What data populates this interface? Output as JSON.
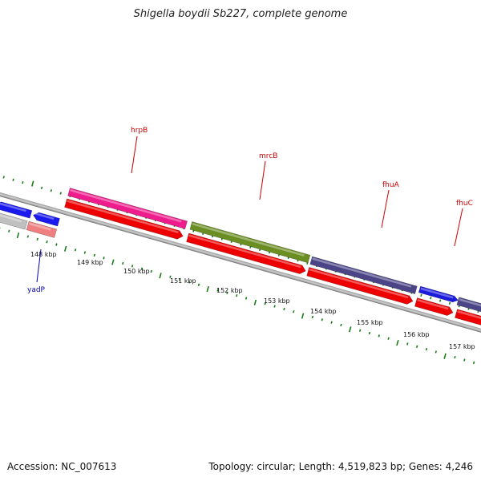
{
  "title": "Shigella boydii Sb227, complete genome",
  "accession": "Accession: NC_007613",
  "summary": "Topology: circular; Length: 4,519,823 bp; Genes: 4,246",
  "colors": {
    "backbone": "#8a8a8a",
    "tick": "#1a7a1a",
    "label_forward": "#cc0000",
    "label_reverse": "#0000aa",
    "cds_red": "#ee0000",
    "hrpB": "#ee1c8c",
    "mrcB": "#6b8e23",
    "fhuA": "#4b4587",
    "fhuC": "#1a1add",
    "yadP_blue": "#1a1aee",
    "grey_gene": "#c0c0c0",
    "pink_gene": "#f08080"
  },
  "scale": {
    "unit": "kbp",
    "labels": [
      "148 kbp",
      "149 kbp",
      "150 kbp",
      "151 kbp",
      "152 kbp",
      "153 kbp",
      "154 kbp",
      "155 kbp",
      "156 kbp",
      "157 kbp"
    ]
  },
  "genes": [
    {
      "name": "hrpB",
      "label": "hrpB",
      "strand": "forward",
      "color_key": "hrpB"
    },
    {
      "name": "mrcB",
      "label": "mrcB",
      "strand": "forward",
      "color_key": "mrcB"
    },
    {
      "name": "fhuA",
      "label": "fhuA",
      "strand": "forward",
      "color_key": "fhuA"
    },
    {
      "name": "fhuC",
      "label": "fhuC",
      "strand": "forward",
      "color_key": "fhuC"
    },
    {
      "name": "yadP",
      "label": "yadP",
      "strand": "reverse",
      "color_key": "yadP_blue"
    }
  ]
}
